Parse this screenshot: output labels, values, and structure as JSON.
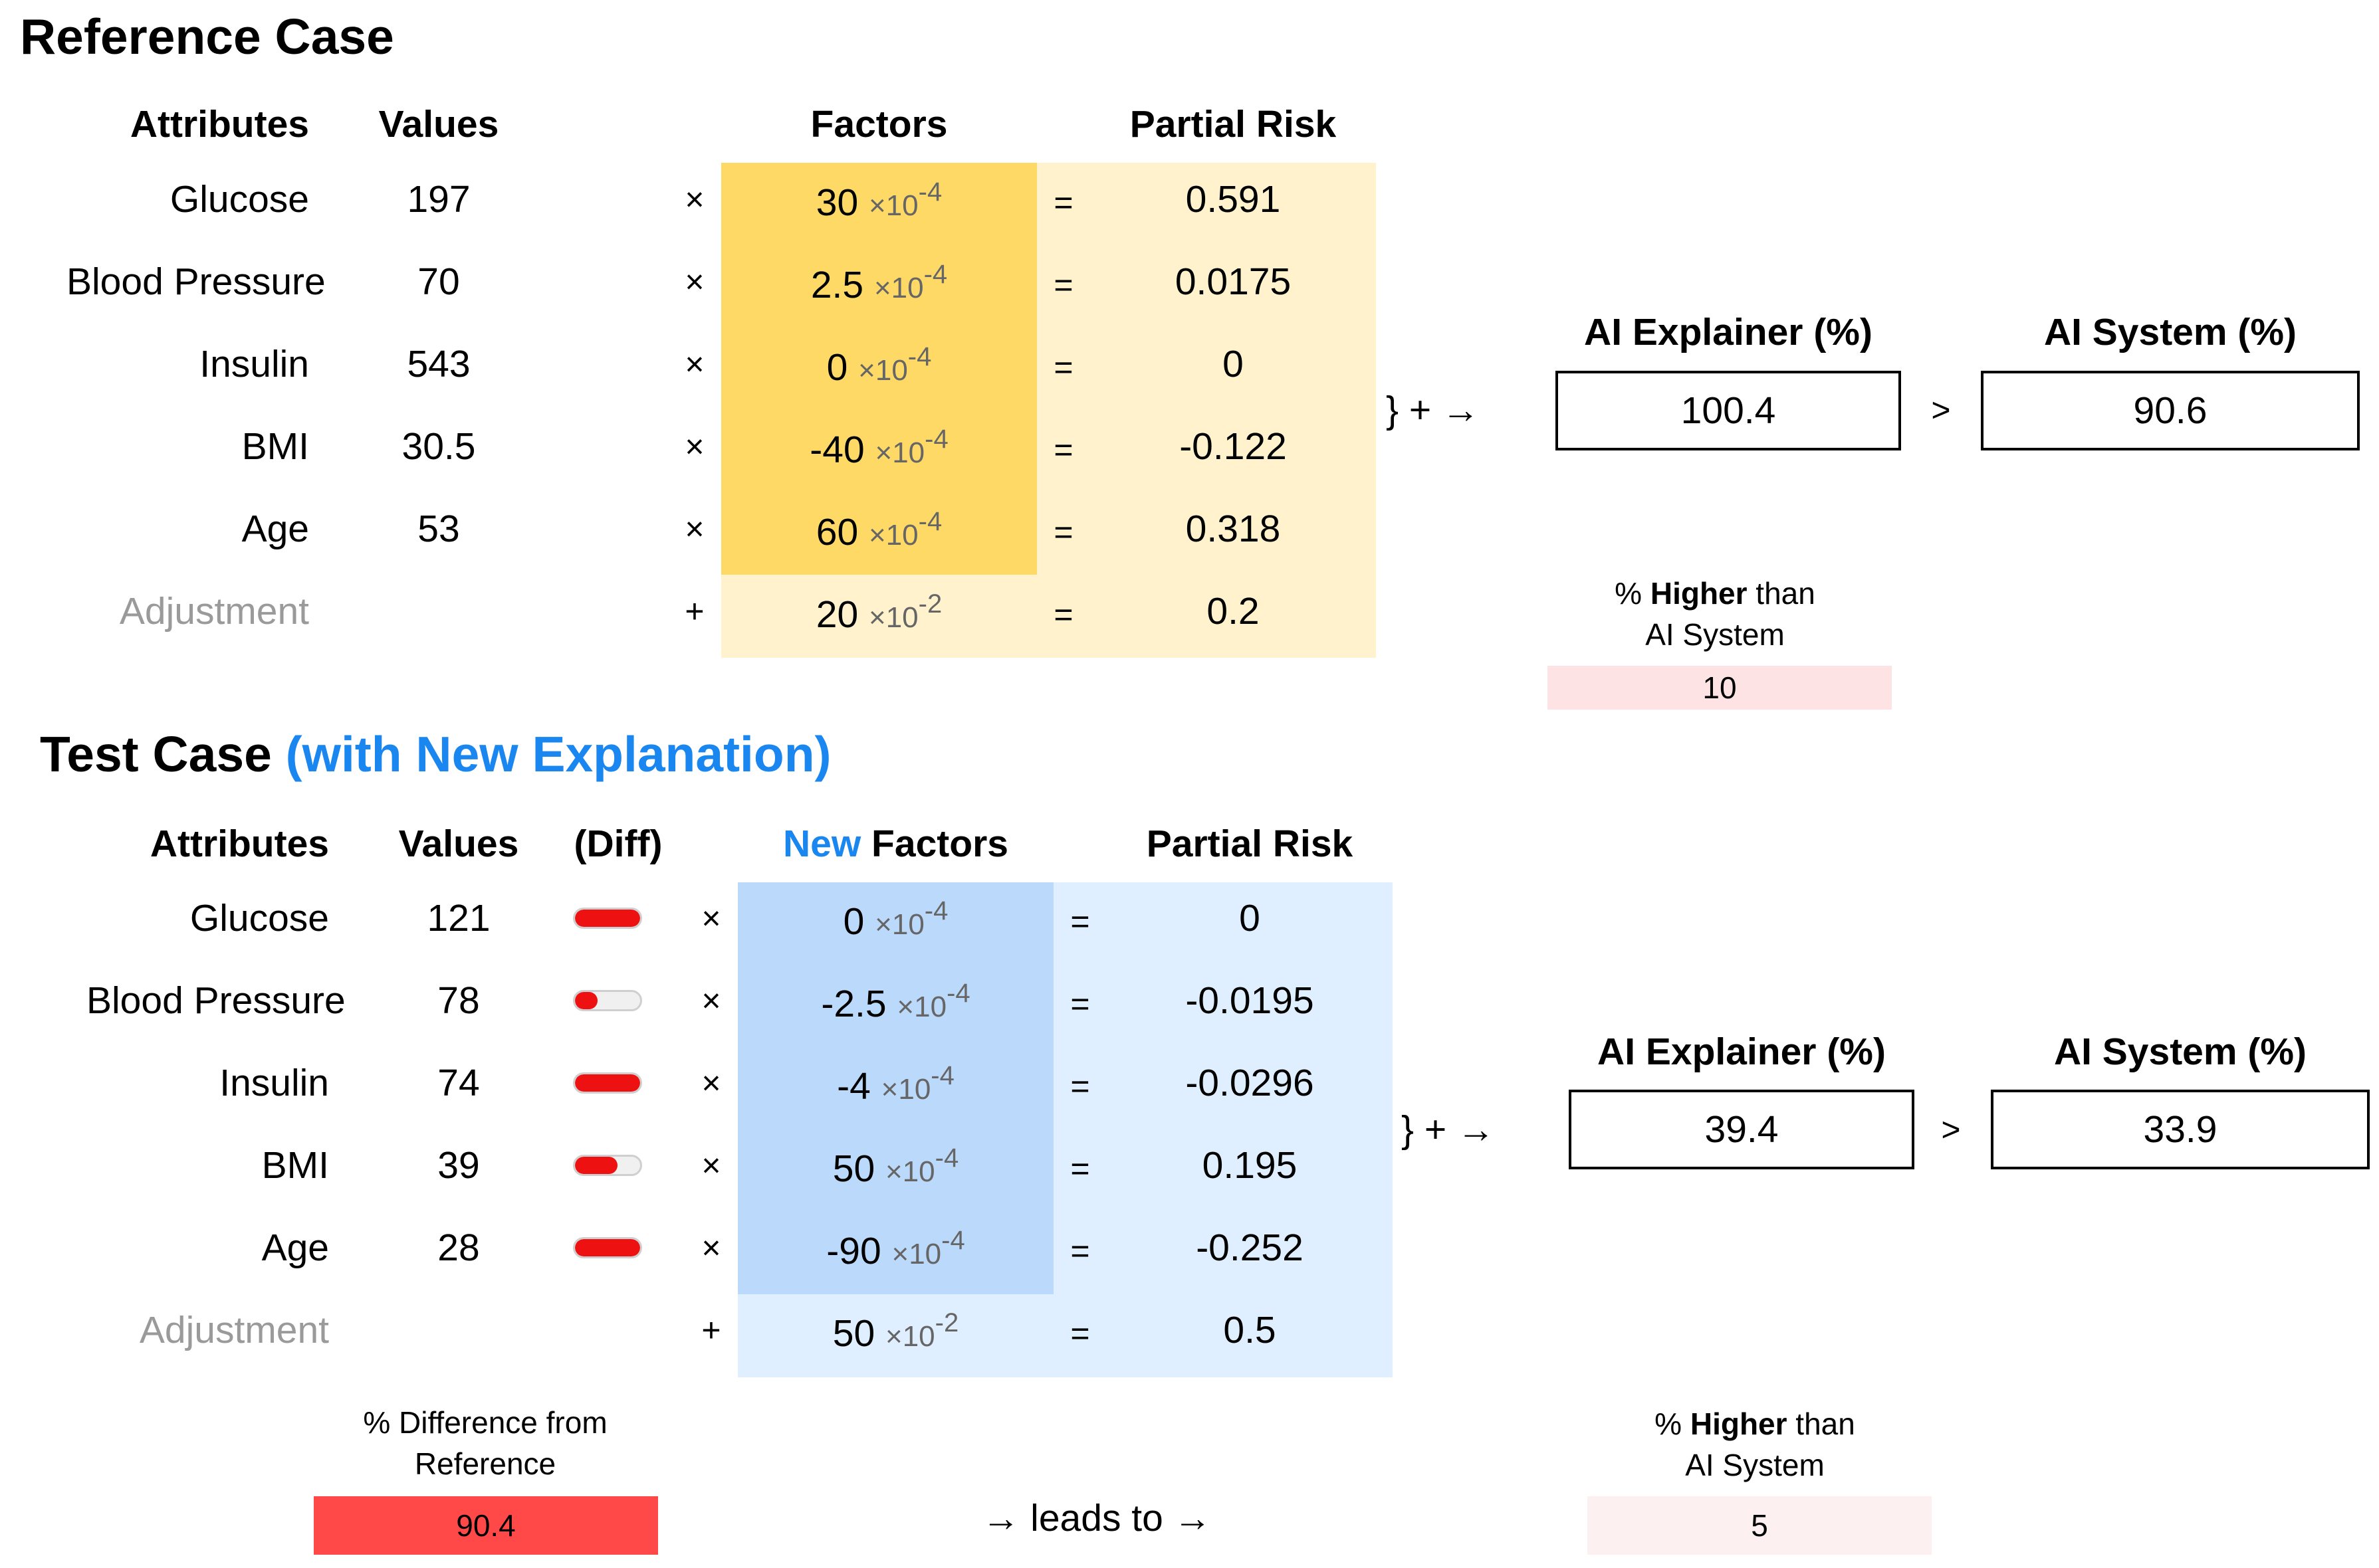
{
  "reference": {
    "title": "Reference Case",
    "headers": {
      "attributes": "Attributes",
      "values": "Values",
      "factors": "Factors",
      "partial_risk": "Partial Risk"
    },
    "rows": [
      {
        "attribute": "Glucose",
        "value": "197",
        "op": "×",
        "factor": "30",
        "exp": "-4",
        "eq": "=",
        "risk": "0.591"
      },
      {
        "attribute": "Blood Pressure",
        "value": "70",
        "op": "×",
        "factor": "2.5",
        "exp": "-4",
        "eq": "=",
        "risk": "0.0175"
      },
      {
        "attribute": "Insulin",
        "value": "543",
        "op": "×",
        "factor": "0",
        "exp": "-4",
        "eq": "=",
        "risk": "0"
      },
      {
        "attribute": "BMI",
        "value": "30.5",
        "op": "×",
        "factor": "-40",
        "exp": "-4",
        "eq": "=",
        "risk": "-0.122"
      },
      {
        "attribute": "Age",
        "value": "53",
        "op": "×",
        "factor": "60",
        "exp": "-4",
        "eq": "=",
        "risk": "0.318"
      }
    ],
    "adjustment": {
      "label": "Adjustment",
      "op": "+",
      "factor": "20",
      "exp": "-2",
      "eq": "=",
      "risk": "0.2"
    },
    "sum_symbol": "} + →",
    "explainer_label": "AI Explainer (%)",
    "explainer_value": "100.4",
    "compare": ">",
    "system_label": "AI System (%)",
    "system_value": "90.6",
    "higher_caption_pre": "% ",
    "higher_caption_bold": "Higher",
    "higher_caption_post": " than",
    "higher_caption_line2": "AI System",
    "higher_value": "10",
    "higher_fraction": 0.1
  },
  "test": {
    "title": "Test Case",
    "title_sub": "(with New Explanation)",
    "headers": {
      "attributes": "Attributes",
      "values": "Values",
      "diff": "(Diff)",
      "factors_new": "New",
      "factors": " Factors",
      "partial_risk": "Partial Risk"
    },
    "rows": [
      {
        "attribute": "Glucose",
        "value": "121",
        "diff": 1.0,
        "op": "×",
        "factor": "0",
        "exp": "-4",
        "eq": "=",
        "risk": "0"
      },
      {
        "attribute": "Blood Pressure",
        "value": "78",
        "diff": 0.35,
        "op": "×",
        "factor": "-2.5",
        "exp": "-4",
        "eq": "=",
        "risk": "-0.0195"
      },
      {
        "attribute": "Insulin",
        "value": "74",
        "diff": 1.0,
        "op": "×",
        "factor": "-4",
        "exp": "-4",
        "eq": "=",
        "risk": "-0.0296"
      },
      {
        "attribute": "BMI",
        "value": "39",
        "diff": 0.65,
        "op": "×",
        "factor": "50",
        "exp": "-4",
        "eq": "=",
        "risk": "0.195"
      },
      {
        "attribute": "Age",
        "value": "28",
        "diff": 1.0,
        "op": "×",
        "factor": "-90",
        "exp": "-4",
        "eq": "=",
        "risk": "-0.252"
      }
    ],
    "adjustment": {
      "label": "Adjustment",
      "op": "+",
      "factor": "50",
      "exp": "-2",
      "eq": "=",
      "risk": "0.5"
    },
    "sum_symbol": "} + →",
    "explainer_label": "AI Explainer (%)",
    "explainer_value": "39.4",
    "compare": ">",
    "system_label": "AI System (%)",
    "system_value": "33.9",
    "diff_caption_line1": "% Difference from",
    "diff_caption_line2": "Reference",
    "diff_value": "90.4",
    "diff_fraction": 0.904,
    "leads_to": "→ leads to →",
    "higher_caption_pre": "% ",
    "higher_caption_bold": "Higher",
    "higher_caption_post": " than",
    "higher_caption_line2": "AI System",
    "higher_value": "5",
    "higher_fraction": 0.05
  },
  "sci_prefix": "×10",
  "colors": {
    "ref_factor_band": "#ffd966",
    "ref_light_band": "#fff2cc",
    "test_factor_band": "#bbd9fb",
    "test_light_band": "#e0efff",
    "diff_bar": "#ff4848",
    "higher_bar_ref": "#fde3e3",
    "higher_bar_test": "#fdf0f0",
    "accent_blue": "#1a86f0",
    "pill_red": "#ee1111"
  }
}
